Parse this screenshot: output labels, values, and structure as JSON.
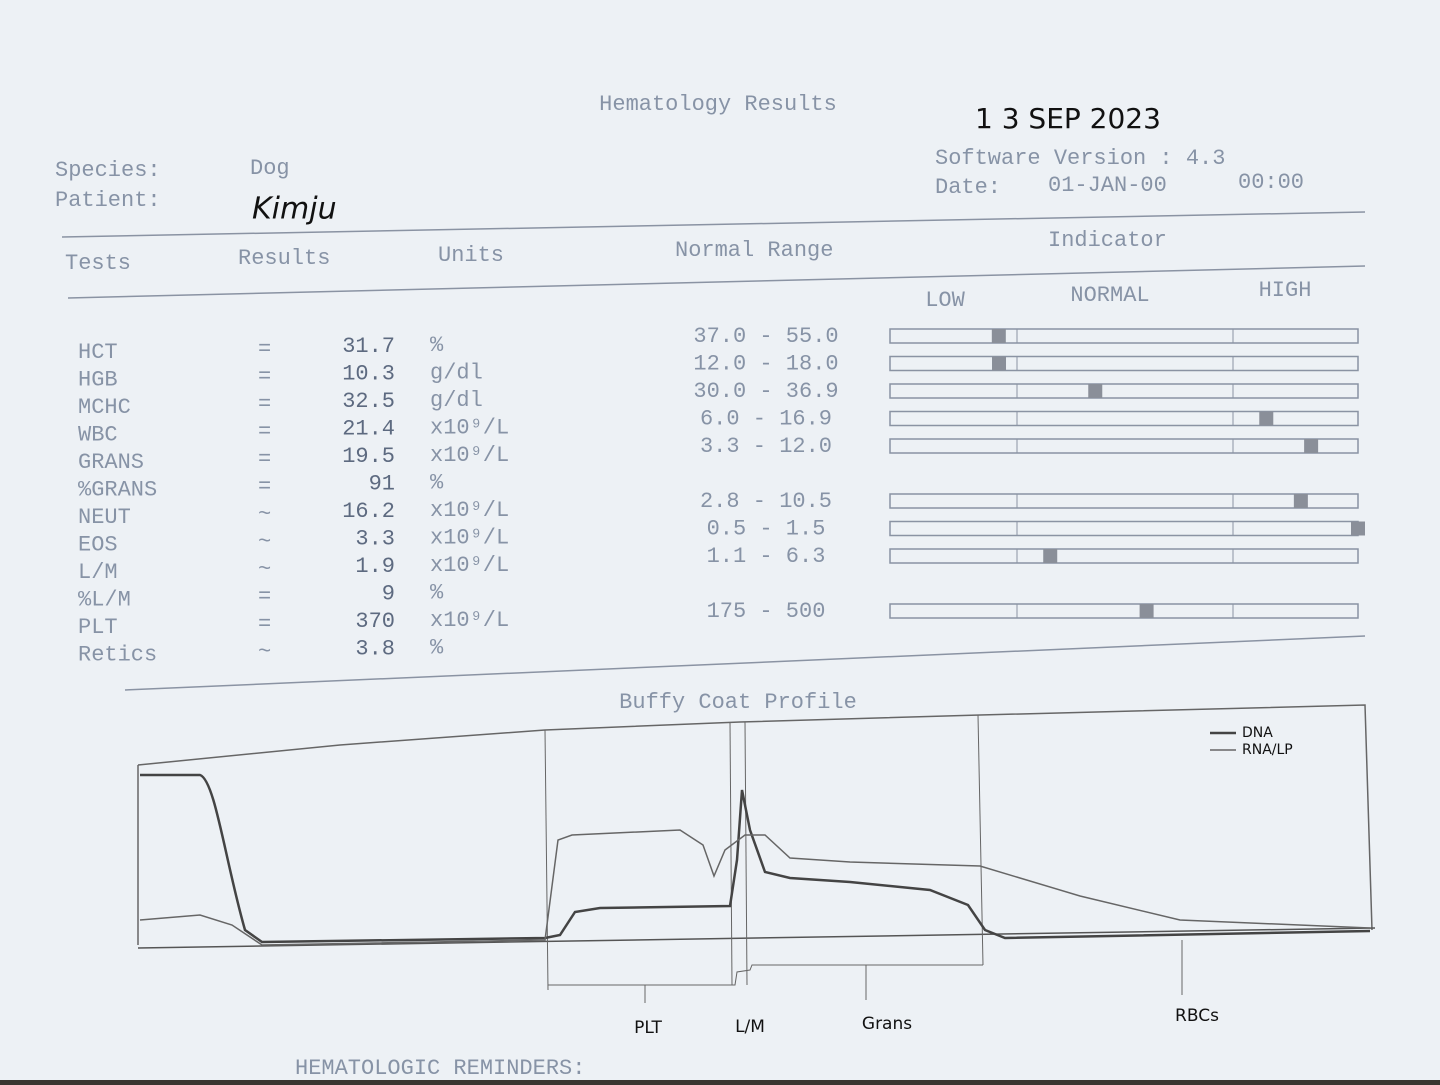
{
  "header": {
    "title": "Hematology Results",
    "stamp": "1 3 SEP 2023",
    "species_label": "Species:",
    "species": "Dog",
    "patient_label": "Patient:",
    "patient": "Kimju",
    "software": "Software Version : 4.3",
    "date_label": "Date:",
    "date": "01-JAN-00",
    "time": "00:00"
  },
  "table": {
    "columns": [
      "Tests",
      "Results",
      "Units",
      "Normal Range",
      "Indicator"
    ],
    "indicator_levels": [
      "LOW",
      "NORMAL",
      "HIGH"
    ],
    "rows": [
      {
        "test": "HCT",
        "op": "=",
        "result": "31.7",
        "unit": "%",
        "range": "37.0 - 55.0"
      },
      {
        "test": "HGB",
        "op": "=",
        "result": "10.3",
        "unit": "g/dl",
        "range": "12.0 - 18.0"
      },
      {
        "test": "MCHC",
        "op": "=",
        "result": "32.5",
        "unit": "g/dl",
        "range": "30.0 - 36.9"
      },
      {
        "test": "WBC",
        "op": "=",
        "result": "21.4",
        "unit": "x10⁹/L",
        "range": "6.0 - 16.9"
      },
      {
        "test": "GRANS",
        "op": "=",
        "result": "19.5",
        "unit": "x10⁹/L",
        "range": "3.3 - 12.0"
      },
      {
        "test": "%GRANS",
        "op": "=",
        "result": "91",
        "unit": "%"
      },
      {
        "test": "NEUT",
        "op": "~",
        "result": "16.2",
        "unit": "x10⁹/L",
        "range": "2.8 - 10.5"
      },
      {
        "test": "EOS",
        "op": "~",
        "result": "3.3",
        "unit": "x10⁹/L",
        "range": "0.5 - 1.5"
      },
      {
        "test": "L/M",
        "op": "~",
        "result": "1.9",
        "unit": "x10⁹/L",
        "range": "1.1 - 6.3"
      },
      {
        "test": "%L/M",
        "op": "=",
        "result": "9",
        "unit": "%"
      },
      {
        "test": "PLT",
        "op": "=",
        "result": "370",
        "unit": "x10⁹/L",
        "range": "175 - 500"
      },
      {
        "test": "Retics",
        "op": "~",
        "result": "3.8",
        "unit": "%"
      }
    ]
  },
  "profile": {
    "title": "Buffy Coat Profile",
    "legend": [
      "DNA",
      "RNA/LP"
    ],
    "regions": [
      "PLT",
      "L/M",
      "Grans",
      "RBCs"
    ]
  },
  "footer": "HEMATOLOGIC REMINDERS:"
}
